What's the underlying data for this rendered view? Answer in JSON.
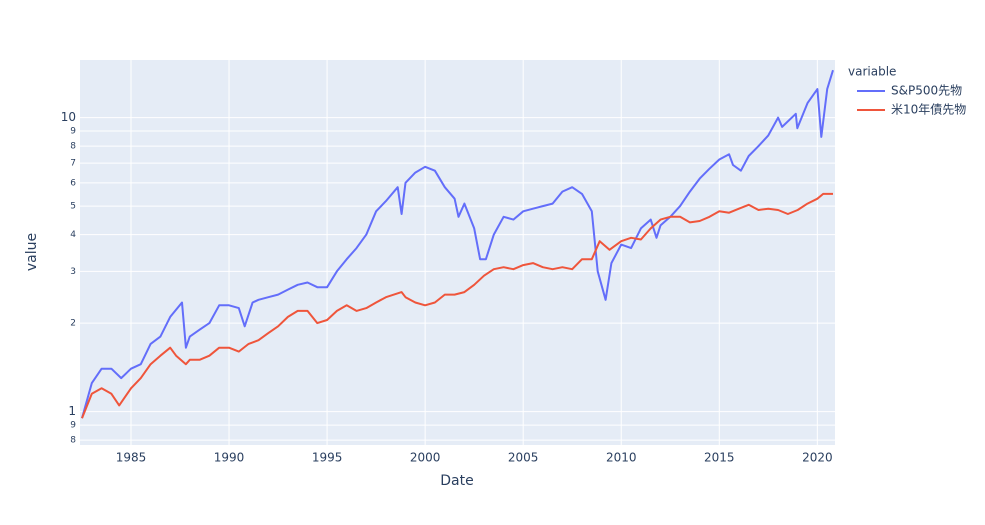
{
  "chart_data": {
    "type": "line",
    "x_label": "Date",
    "y_label": "value",
    "legend_title": "variable",
    "log_y": true,
    "grid": true,
    "legend_position": "right",
    "xlim": [
      1982.4,
      2020.9
    ],
    "xticks": [
      1985,
      1990,
      1995,
      2000,
      2005,
      2010,
      2015,
      2020
    ],
    "ylim": [
      0.77,
      15.7
    ],
    "yticks": [
      {
        "value": 0.8,
        "label": "8"
      },
      {
        "value": 0.9,
        "label": "9"
      },
      1,
      2,
      3,
      4,
      5,
      6,
      7,
      8,
      9,
      10
    ],
    "series": [
      {
        "name": "S&P500先物",
        "color": "#636efa",
        "x": [
          1982.5,
          1983.0,
          1983.5,
          1984.0,
          1984.5,
          1985.0,
          1985.5,
          1986.0,
          1986.5,
          1987.0,
          1987.6,
          1987.8,
          1988.0,
          1988.5,
          1989.0,
          1989.5,
          1990.0,
          1990.5,
          1990.8,
          1991.2,
          1991.5,
          1992.0,
          1992.5,
          1993.0,
          1993.5,
          1994.0,
          1994.5,
          1995.0,
          1995.5,
          1996.0,
          1996.5,
          1997.0,
          1997.5,
          1998.0,
          1998.6,
          1998.8,
          1999.0,
          1999.5,
          2000.0,
          2000.5,
          2001.0,
          2001.5,
          2001.7,
          2002.0,
          2002.5,
          2002.8,
          2003.1,
          2003.5,
          2004.0,
          2004.5,
          2005.0,
          2005.5,
          2006.0,
          2006.5,
          2007.0,
          2007.5,
          2008.0,
          2008.5,
          2008.8,
          2009.2,
          2009.5,
          2010.0,
          2010.5,
          2011.0,
          2011.5,
          2011.8,
          2012.0,
          2012.5,
          2013.0,
          2013.5,
          2014.0,
          2014.5,
          2015.0,
          2015.5,
          2015.7,
          2016.1,
          2016.5,
          2017.0,
          2017.5,
          2018.0,
          2018.2,
          2018.9,
          2018.98,
          2019.5,
          2020.0,
          2020.2,
          2020.5,
          2020.8
        ],
        "values": [
          0.95,
          1.25,
          1.4,
          1.4,
          1.3,
          1.4,
          1.45,
          1.7,
          1.8,
          2.1,
          2.35,
          1.65,
          1.8,
          1.9,
          2.0,
          2.3,
          2.3,
          2.25,
          1.95,
          2.35,
          2.4,
          2.45,
          2.5,
          2.6,
          2.7,
          2.75,
          2.65,
          2.65,
          3.0,
          3.3,
          3.6,
          4.0,
          4.8,
          5.2,
          5.8,
          4.7,
          6.0,
          6.5,
          6.8,
          6.6,
          5.8,
          5.3,
          4.6,
          5.1,
          4.2,
          3.3,
          3.3,
          4.0,
          4.6,
          4.5,
          4.8,
          4.9,
          5.0,
          5.1,
          5.6,
          5.8,
          5.5,
          4.8,
          3.0,
          2.4,
          3.2,
          3.7,
          3.6,
          4.2,
          4.5,
          3.9,
          4.3,
          4.6,
          5.0,
          5.6,
          6.2,
          6.7,
          7.2,
          7.5,
          6.9,
          6.6,
          7.4,
          8.0,
          8.7,
          10.0,
          9.3,
          10.3,
          9.2,
          11.2,
          12.5,
          8.6,
          12.5,
          14.5
        ]
      },
      {
        "name": "米10年債先物",
        "color": "#ef553b",
        "x": [
          1982.5,
          1983.0,
          1983.5,
          1984.0,
          1984.4,
          1985.0,
          1985.5,
          1986.0,
          1986.5,
          1987.0,
          1987.3,
          1987.8,
          1988.0,
          1988.5,
          1989.0,
          1989.5,
          1990.0,
          1990.5,
          1991.0,
          1991.5,
          1992.0,
          1992.5,
          1993.0,
          1993.5,
          1994.0,
          1994.5,
          1995.0,
          1995.5,
          1996.0,
          1996.5,
          1997.0,
          1997.5,
          1998.0,
          1998.8,
          1999.0,
          1999.5,
          2000.0,
          2000.5,
          2001.0,
          2001.5,
          2002.0,
          2002.5,
          2003.0,
          2003.5,
          2004.0,
          2004.5,
          2005.0,
          2005.5,
          2006.0,
          2006.5,
          2007.0,
          2007.5,
          2008.0,
          2008.5,
          2008.9,
          2009.4,
          2010.0,
          2010.5,
          2011.0,
          2011.5,
          2012.0,
          2012.5,
          2013.0,
          2013.5,
          2014.0,
          2014.5,
          2015.0,
          2015.5,
          2016.0,
          2016.5,
          2017.0,
          2017.5,
          2018.0,
          2018.5,
          2019.0,
          2019.5,
          2020.0,
          2020.3,
          2020.8
        ],
        "values": [
          0.95,
          1.15,
          1.2,
          1.15,
          1.05,
          1.2,
          1.3,
          1.45,
          1.55,
          1.65,
          1.55,
          1.45,
          1.5,
          1.5,
          1.55,
          1.65,
          1.65,
          1.6,
          1.7,
          1.75,
          1.85,
          1.95,
          2.1,
          2.2,
          2.2,
          2.0,
          2.05,
          2.2,
          2.3,
          2.2,
          2.25,
          2.35,
          2.45,
          2.55,
          2.45,
          2.35,
          2.3,
          2.35,
          2.5,
          2.5,
          2.55,
          2.7,
          2.9,
          3.05,
          3.1,
          3.05,
          3.15,
          3.2,
          3.1,
          3.05,
          3.1,
          3.05,
          3.3,
          3.3,
          3.8,
          3.55,
          3.8,
          3.9,
          3.85,
          4.2,
          4.5,
          4.6,
          4.6,
          4.4,
          4.45,
          4.6,
          4.8,
          4.75,
          4.9,
          5.05,
          4.85,
          4.9,
          4.85,
          4.7,
          4.85,
          5.1,
          5.3,
          5.5,
          5.5
        ]
      }
    ]
  }
}
